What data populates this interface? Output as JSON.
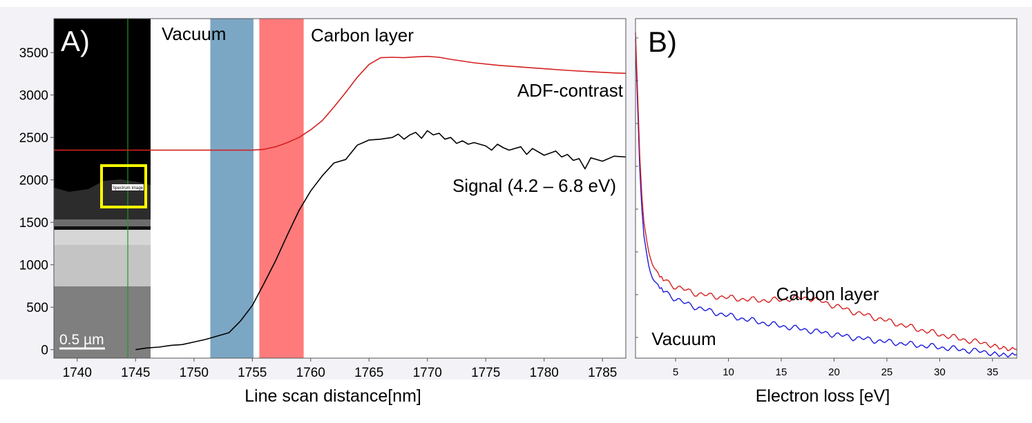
{
  "colors": {
    "background": "#ffffff",
    "panel_bg": "#f0f0f5",
    "vacuum_band": "#7ba7c4",
    "carbon_band": "#ff7a7a",
    "red_curve": "#d42020",
    "black_curve": "#000000",
    "blue_curve": "#1a1adc",
    "inset_highlight": "#ffff00"
  },
  "chart_data": [
    {
      "type": "line",
      "panel_label": "A)",
      "xlabel": "Line scan distance[nm]",
      "ylabel": "",
      "xlim": [
        1738,
        1787
      ],
      "ylim": [
        -100,
        3900
      ],
      "x_ticks": [
        1740,
        1745,
        1750,
        1755,
        1760,
        1765,
        1770,
        1775,
        1780,
        1785
      ],
      "y_ticks": [
        0,
        500,
        1000,
        1500,
        2000,
        2500,
        3000,
        3500
      ],
      "regions": [
        {
          "name": "Vacuum",
          "label": "Vacuum",
          "x_range": [
            1751.4,
            1755.1
          ],
          "color": "#7ba7c4"
        },
        {
          "name": "Carbon layer",
          "label": "Carbon layer",
          "x_range": [
            1755.6,
            1759.4
          ],
          "color": "#ff7a7a"
        }
      ],
      "inset": {
        "scale_bar_label": "0.5 µm",
        "selection_label": "Spectrum Image"
      },
      "series": [
        {
          "name": "ADF-contrast",
          "label": "ADF-contrast",
          "color": "#d42020",
          "x": [
            1738,
            1750,
            1755,
            1756,
            1757,
            1758,
            1759,
            1760,
            1761,
            1762,
            1763,
            1764,
            1765,
            1766,
            1767,
            1768,
            1769,
            1770,
            1771,
            1772,
            1774,
            1776,
            1778,
            1780,
            1782,
            1784,
            1786,
            1787
          ],
          "y": [
            2350,
            2350,
            2350,
            2360,
            2390,
            2440,
            2500,
            2590,
            2700,
            2860,
            3030,
            3210,
            3360,
            3440,
            3445,
            3440,
            3450,
            3455,
            3445,
            3420,
            3380,
            3350,
            3330,
            3310,
            3290,
            3275,
            3260,
            3255
          ]
        },
        {
          "name": "Signal (4.2 – 6.8 eV)",
          "label": "Signal (4.2 – 6.8 eV)",
          "color": "#000000",
          "x": [
            1745,
            1746,
            1747,
            1748,
            1749,
            1750,
            1751,
            1752,
            1753,
            1754,
            1755,
            1756,
            1757,
            1758,
            1759,
            1760,
            1761,
            1762,
            1763,
            1764,
            1764.5,
            1765,
            1766,
            1767,
            1767.5,
            1768,
            1768.5,
            1769,
            1769.5,
            1770,
            1770.5,
            1771,
            1771.5,
            1772,
            1772.5,
            1773,
            1773.5,
            1774,
            1775,
            1775.5,
            1776,
            1776.5,
            1777,
            1778,
            1778.5,
            1779,
            1780,
            1781,
            1781.5,
            1782,
            1782.5,
            1783,
            1783.5,
            1784,
            1785,
            1786,
            1787
          ],
          "y": [
            0,
            20,
            30,
            50,
            60,
            90,
            120,
            160,
            200,
            340,
            520,
            780,
            1050,
            1350,
            1640,
            1870,
            2050,
            2200,
            2240,
            2410,
            2440,
            2470,
            2480,
            2500,
            2540,
            2480,
            2530,
            2560,
            2490,
            2580,
            2530,
            2550,
            2480,
            2500,
            2430,
            2460,
            2420,
            2440,
            2400,
            2350,
            2420,
            2380,
            2350,
            2390,
            2300,
            2370,
            2290,
            2340,
            2270,
            2300,
            2230,
            2250,
            2130,
            2260,
            2220,
            2280,
            2270
          ]
        }
      ]
    },
    {
      "type": "line",
      "panel_label": "B)",
      "xlabel": "Electron loss [eV]",
      "ylabel": "",
      "xlim": [
        1.2,
        37.3
      ],
      "ylim": [
        0,
        1
      ],
      "x_ticks": [
        5,
        10,
        15,
        20,
        25,
        30,
        35
      ],
      "series": [
        {
          "name": "Carbon layer",
          "label": "Carbon layer",
          "color": "#d42020",
          "x": [
            1.2,
            1.4,
            1.6,
            1.8,
            2.0,
            2.3,
            2.6,
            3.0,
            3.5,
            4.0,
            5.0,
            6.0,
            7.0,
            8.0,
            10.0,
            12.0,
            14.0,
            16.0,
            17.0,
            18.0,
            19.0,
            20.0,
            22.0,
            25.0,
            28.0,
            30.0,
            33.0,
            35.0,
            37.3
          ],
          "y": [
            0.96,
            0.78,
            0.6,
            0.48,
            0.4,
            0.34,
            0.3,
            0.27,
            0.245,
            0.23,
            0.21,
            0.2,
            0.19,
            0.185,
            0.178,
            0.172,
            0.17,
            0.175,
            0.178,
            0.175,
            0.165,
            0.155,
            0.135,
            0.11,
            0.085,
            0.07,
            0.05,
            0.04,
            0.025
          ]
        },
        {
          "name": "Vacuum",
          "label": "Vacuum",
          "color": "#1a1adc",
          "x": [
            1.2,
            1.4,
            1.6,
            1.8,
            2.0,
            2.3,
            2.6,
            3.0,
            3.5,
            4.0,
            5.0,
            6.0,
            7.0,
            8.0,
            10.0,
            12.0,
            14.0,
            16.0,
            18.0,
            20.0,
            22.0,
            25.0,
            28.0,
            30.0,
            33.0,
            35.0,
            37.3
          ],
          "y": [
            0.94,
            0.74,
            0.56,
            0.44,
            0.36,
            0.3,
            0.26,
            0.23,
            0.21,
            0.195,
            0.175,
            0.16,
            0.15,
            0.14,
            0.125,
            0.112,
            0.1,
            0.09,
            0.08,
            0.07,
            0.06,
            0.048,
            0.038,
            0.032,
            0.022,
            0.016,
            0.01
          ]
        }
      ]
    }
  ]
}
